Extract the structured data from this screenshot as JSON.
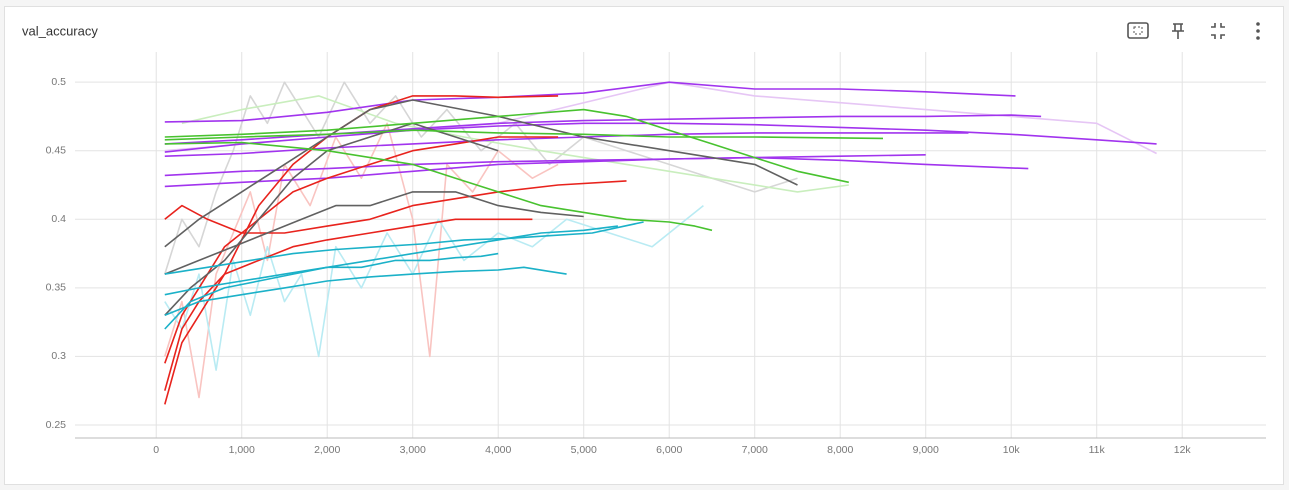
{
  "chart_data": {
    "type": "line",
    "title": "val_accuracy",
    "xlim": [
      -950,
      12980
    ],
    "ylim": [
      0.2405,
      0.522
    ],
    "xticks": [
      0,
      {
        "value": 1000,
        "label": "1,000"
      },
      {
        "value": 2000,
        "label": "2,000"
      },
      {
        "value": 3000,
        "label": "3,000"
      },
      {
        "value": 4000,
        "label": "4,000"
      },
      {
        "value": 5000,
        "label": "5,000"
      },
      {
        "value": 6000,
        "label": "6,000"
      },
      {
        "value": 7000,
        "label": "7,000"
      },
      {
        "value": 8000,
        "label": "8,000"
      },
      {
        "value": 9000,
        "label": "9,000"
      },
      {
        "value": 10000,
        "label": "10k"
      },
      {
        "value": 11000,
        "label": "11k"
      },
      {
        "value": 12000,
        "label": "12k"
      }
    ],
    "yticks": [
      0.25,
      0.3,
      0.35,
      0.4,
      0.45,
      0.5
    ],
    "grid": true,
    "series": [
      {
        "color": "#d6d6d6",
        "x": [
          100,
          300,
          500,
          700,
          900,
          1100,
          1300,
          1500,
          1700,
          1900,
          2200,
          2500,
          2800,
          3100,
          3400,
          3800,
          4200,
          4600,
          5000,
          5500,
          6000,
          6500,
          7000,
          7500
        ],
        "values": [
          0.36,
          0.4,
          0.38,
          0.42,
          0.45,
          0.49,
          0.47,
          0.5,
          0.48,
          0.46,
          0.5,
          0.47,
          0.49,
          0.46,
          0.48,
          0.45,
          0.47,
          0.44,
          0.46,
          0.45,
          0.44,
          0.43,
          0.42,
          0.43
        ]
      },
      {
        "color": "#f9c4c1",
        "x": [
          100,
          300,
          500,
          700,
          900,
          1100,
          1300,
          1500,
          1800,
          2100,
          2400,
          2700,
          3000,
          3200,
          3400,
          3700,
          4000,
          4400,
          4700
        ],
        "values": [
          0.3,
          0.34,
          0.27,
          0.36,
          0.39,
          0.42,
          0.37,
          0.44,
          0.41,
          0.46,
          0.43,
          0.47,
          0.4,
          0.3,
          0.44,
          0.42,
          0.45,
          0.43,
          0.44
        ]
      },
      {
        "color": "#b9ebf3",
        "x": [
          100,
          300,
          500,
          700,
          900,
          1100,
          1300,
          1500,
          1700,
          1900,
          2100,
          2400,
          2700,
          3000,
          3300,
          3600,
          4000,
          4400,
          4800,
          5300,
          5800,
          6400
        ],
        "values": [
          0.34,
          0.32,
          0.36,
          0.29,
          0.37,
          0.33,
          0.38,
          0.34,
          0.36,
          0.3,
          0.38,
          0.35,
          0.39,
          0.36,
          0.4,
          0.37,
          0.39,
          0.38,
          0.4,
          0.39,
          0.38,
          0.41
        ]
      },
      {
        "color": "#e6c6f5",
        "x": [
          100,
          2000,
          4000,
          6000,
          7000,
          8000,
          9000,
          10000,
          11000,
          11700
        ],
        "values": [
          0.45,
          0.46,
          0.47,
          0.5,
          0.49,
          0.485,
          0.48,
          0.475,
          0.47,
          0.448
        ]
      },
      {
        "color": "#c9eebd",
        "x": [
          300,
          1000,
          1900,
          2800,
          3600,
          4500,
          5500,
          6500,
          7500,
          8100
        ],
        "values": [
          0.47,
          0.48,
          0.49,
          0.47,
          0.46,
          0.45,
          0.44,
          0.43,
          0.42,
          0.425
        ]
      },
      {
        "color": "#a134ee",
        "x": [
          100,
          1000,
          2000,
          3000,
          4000,
          5000,
          6000,
          7000,
          8000,
          9000,
          10050
        ],
        "values": [
          0.471,
          0.472,
          0.478,
          0.487,
          0.489,
          0.492,
          0.5,
          0.495,
          0.495,
          0.493,
          0.49
        ]
      },
      {
        "color": "#a134ee",
        "x": [
          100,
          1000,
          2000,
          3000,
          4000,
          5000,
          6000,
          7000,
          8000,
          9000,
          10000,
          11000,
          11700
        ],
        "values": [
          0.449,
          0.455,
          0.46,
          0.465,
          0.468,
          0.47,
          0.47,
          0.469,
          0.467,
          0.465,
          0.462,
          0.458,
          0.455
        ]
      },
      {
        "color": "#a134ee",
        "x": [
          100,
          1000,
          2000,
          3000,
          4000,
          5000,
          6000,
          7000,
          8000,
          9000,
          10000,
          10350
        ],
        "values": [
          0.455,
          0.458,
          0.462,
          0.466,
          0.47,
          0.472,
          0.473,
          0.474,
          0.475,
          0.475,
          0.476,
          0.475
        ]
      },
      {
        "color": "#a134ee",
        "x": [
          100,
          1000,
          2000,
          3000,
          4000,
          5000,
          6000,
          7000,
          8000,
          9000,
          10200
        ],
        "values": [
          0.432,
          0.435,
          0.437,
          0.44,
          0.442,
          0.443,
          0.444,
          0.445,
          0.443,
          0.44,
          0.437
        ]
      },
      {
        "color": "#a134ee",
        "x": [
          100,
          1000,
          2000,
          3000,
          4000,
          5000,
          6000,
          7000,
          8000,
          9000
        ],
        "values": [
          0.424,
          0.427,
          0.43,
          0.435,
          0.44,
          0.442,
          0.444,
          0.445,
          0.446,
          0.447
        ]
      },
      {
        "color": "#a134ee",
        "x": [
          100,
          1000,
          2000,
          3000,
          4000,
          5000,
          6000,
          7000,
          8000,
          9500
        ],
        "values": [
          0.446,
          0.448,
          0.452,
          0.455,
          0.458,
          0.46,
          0.462,
          0.463,
          0.463,
          0.463
        ]
      },
      {
        "color": "#e8231d",
        "x": [
          100,
          300,
          500,
          800,
          1200,
          1600,
          2000,
          2500,
          3000,
          3500,
          4000,
          4700
        ],
        "values": [
          0.265,
          0.31,
          0.33,
          0.36,
          0.41,
          0.44,
          0.46,
          0.48,
          0.49,
          0.49,
          0.489,
          0.49
        ]
      },
      {
        "color": "#e8231d",
        "x": [
          100,
          300,
          500,
          800,
          1200,
          1600,
          2000,
          2500,
          3000,
          3500,
          4000,
          4700
        ],
        "values": [
          0.295,
          0.33,
          0.35,
          0.38,
          0.4,
          0.42,
          0.43,
          0.44,
          0.45,
          0.455,
          0.46,
          0.46
        ]
      },
      {
        "color": "#e8231d",
        "x": [
          100,
          300,
          600,
          1000,
          1500,
          2000,
          2500,
          3000,
          3500,
          4000,
          4700,
          5500
        ],
        "values": [
          0.4,
          0.41,
          0.4,
          0.39,
          0.39,
          0.395,
          0.4,
          0.41,
          0.415,
          0.42,
          0.425,
          0.428
        ]
      },
      {
        "color": "#e8231d",
        "x": [
          100,
          300,
          500,
          800,
          1200,
          1600,
          2000,
          2500,
          3000,
          3500,
          4000,
          4400
        ],
        "values": [
          0.275,
          0.32,
          0.34,
          0.36,
          0.37,
          0.38,
          0.385,
          0.39,
          0.395,
          0.4,
          0.4,
          0.4
        ]
      },
      {
        "color": "#616161",
        "x": [
          100,
          500,
          1000,
          1500,
          2000,
          2500,
          3000,
          4000,
          5000,
          6000,
          7000,
          7500
        ],
        "values": [
          0.38,
          0.4,
          0.42,
          0.44,
          0.46,
          0.48,
          0.487,
          0.475,
          0.46,
          0.45,
          0.44,
          0.425
        ]
      },
      {
        "color": "#616161",
        "x": [
          100,
          500,
          900,
          1300,
          1700,
          2100,
          2500,
          3000,
          3500,
          4000,
          4500,
          5000
        ],
        "values": [
          0.36,
          0.37,
          0.38,
          0.39,
          0.4,
          0.41,
          0.41,
          0.42,
          0.42,
          0.41,
          0.405,
          0.402
        ]
      },
      {
        "color": "#616161",
        "x": [
          100,
          400,
          800,
          1200,
          1600,
          2000,
          2500,
          3000,
          3500,
          4000
        ],
        "values": [
          0.33,
          0.35,
          0.37,
          0.4,
          0.43,
          0.45,
          0.46,
          0.47,
          0.46,
          0.45
        ]
      },
      {
        "color": "#48c22f",
        "x": [
          100,
          1000,
          2000,
          3000,
          4000,
          5000,
          5500,
          6000,
          6500,
          7000,
          7500,
          8100
        ],
        "values": [
          0.46,
          0.462,
          0.465,
          0.47,
          0.475,
          0.48,
          0.475,
          0.465,
          0.455,
          0.445,
          0.435,
          0.427
        ]
      },
      {
        "color": "#48c22f",
        "x": [
          100,
          1000,
          2000,
          3000,
          3500,
          4000,
          4500,
          5000,
          5500,
          6000,
          6300,
          6500
        ],
        "values": [
          0.455,
          0.456,
          0.45,
          0.44,
          0.43,
          0.42,
          0.41,
          0.405,
          0.4,
          0.398,
          0.395,
          0.392
        ]
      },
      {
        "color": "#48c22f",
        "x": [
          100,
          1000,
          2000,
          3000,
          4000,
          5000,
          6000,
          7000,
          8500
        ],
        "values": [
          0.458,
          0.46,
          0.462,
          0.465,
          0.463,
          0.462,
          0.46,
          0.46,
          0.459
        ]
      },
      {
        "color": "#1bb1c8",
        "x": [
          100,
          500,
          1000,
          1500,
          2000,
          2500,
          3000,
          3500,
          4000,
          4500,
          5000,
          5400
        ],
        "values": [
          0.345,
          0.35,
          0.355,
          0.36,
          0.365,
          0.37,
          0.375,
          0.38,
          0.385,
          0.39,
          0.392,
          0.395
        ]
      },
      {
        "color": "#1bb1c8",
        "x": [
          100,
          500,
          1000,
          1500,
          2000,
          2500,
          3000,
          3500,
          4000,
          4300,
          4600,
          4800
        ],
        "values": [
          0.33,
          0.34,
          0.345,
          0.35,
          0.355,
          0.358,
          0.36,
          0.362,
          0.363,
          0.365,
          0.362,
          0.36
        ]
      },
      {
        "color": "#1bb1c8",
        "x": [
          100,
          600,
          1100,
          1600,
          2100,
          2600,
          3100,
          3600,
          4100,
          4600,
          5100,
          5700
        ],
        "values": [
          0.36,
          0.365,
          0.37,
          0.375,
          0.378,
          0.38,
          0.382,
          0.385,
          0.386,
          0.388,
          0.39,
          0.398
        ]
      },
      {
        "color": "#1bb1c8",
        "x": [
          100,
          400,
          800,
          1200,
          1600,
          2000,
          2400,
          2800,
          3200,
          3500,
          3800,
          4000
        ],
        "values": [
          0.32,
          0.34,
          0.35,
          0.355,
          0.36,
          0.365,
          0.365,
          0.37,
          0.37,
          0.372,
          0.373,
          0.375
        ]
      }
    ]
  }
}
